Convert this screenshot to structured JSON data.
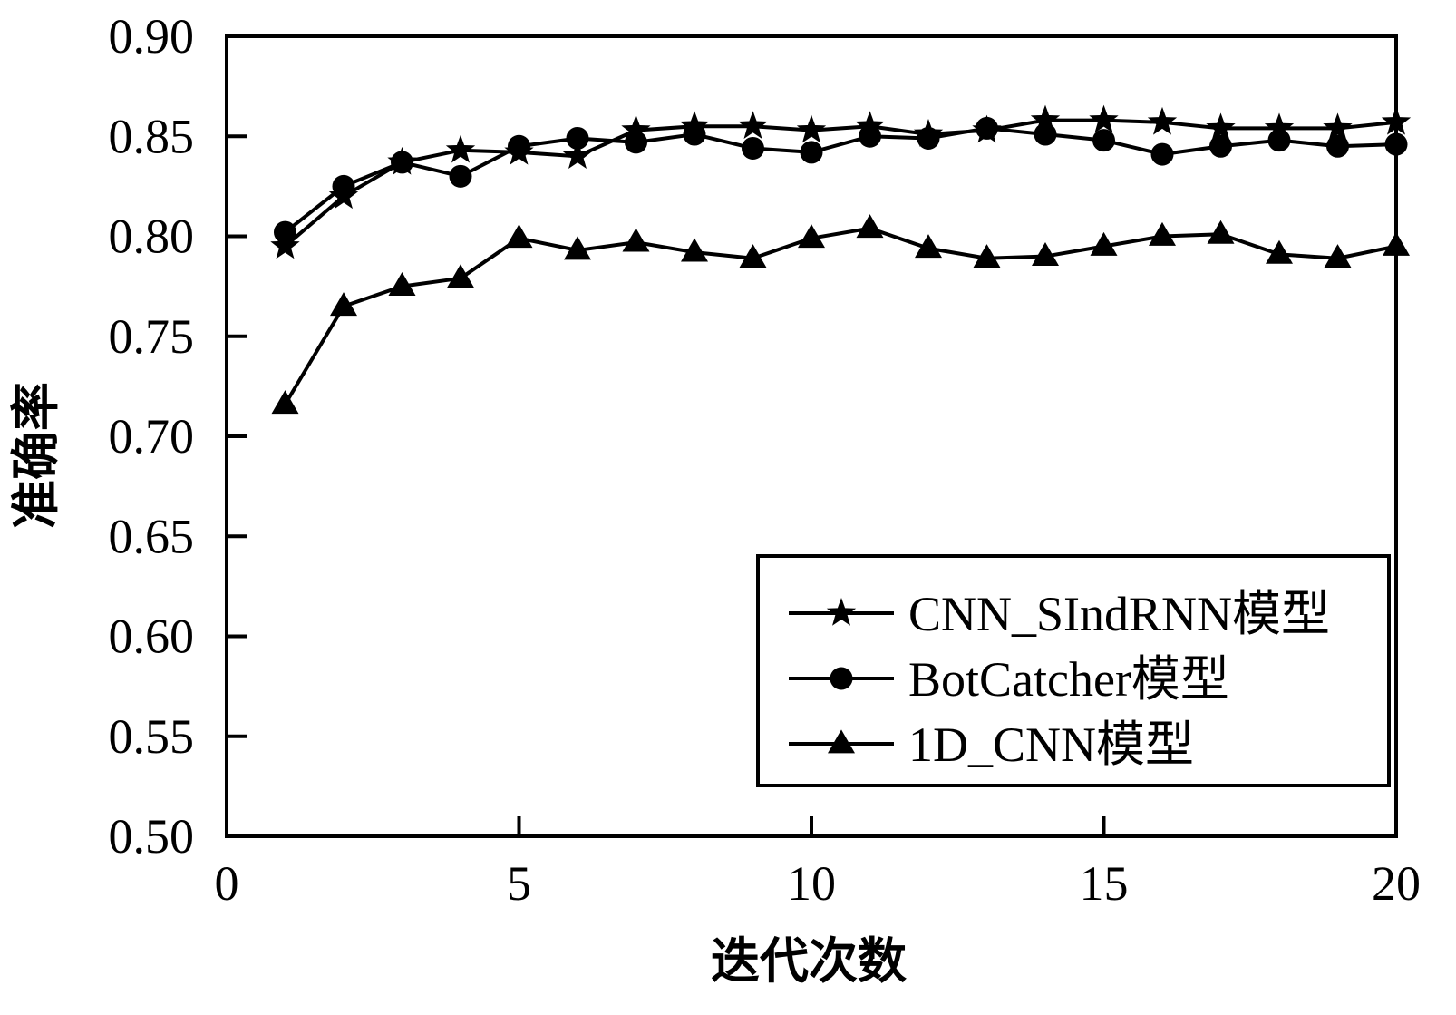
{
  "chart_data": {
    "type": "line",
    "xlabel": "迭代次数",
    "ylabel": "准确率",
    "xlim": [
      0,
      20
    ],
    "ylim": [
      0.5,
      0.9
    ],
    "x_ticks": [
      "0",
      "5",
      "10",
      "15",
      "20"
    ],
    "y_ticks": [
      "0.50",
      "0.55",
      "0.60",
      "0.65",
      "0.70",
      "0.75",
      "0.80",
      "0.85",
      "0.90"
    ],
    "legend_position": "lower-right",
    "grid": false,
    "x": [
      1,
      2,
      3,
      4,
      5,
      6,
      7,
      8,
      9,
      10,
      11,
      12,
      13,
      14,
      15,
      16,
      17,
      18,
      19,
      20
    ],
    "series": [
      {
        "name": "CNN_SIndRNN模型",
        "marker": "star",
        "values": [
          0.795,
          0.82,
          0.837,
          0.843,
          0.842,
          0.84,
          0.853,
          0.855,
          0.855,
          0.853,
          0.855,
          0.851,
          0.853,
          0.858,
          0.858,
          0.857,
          0.854,
          0.854,
          0.854,
          0.857
        ]
      },
      {
        "name": "BotCatcher模型",
        "marker": "circle",
        "values": [
          0.802,
          0.825,
          0.837,
          0.83,
          0.845,
          0.849,
          0.847,
          0.851,
          0.844,
          0.842,
          0.85,
          0.849,
          0.854,
          0.851,
          0.848,
          0.841,
          0.845,
          0.848,
          0.845,
          0.846
        ]
      },
      {
        "name": "1D_CNN模型",
        "marker": "triangle",
        "values": [
          0.716,
          0.765,
          0.775,
          0.779,
          0.799,
          0.793,
          0.797,
          0.792,
          0.789,
          0.799,
          0.804,
          0.794,
          0.789,
          0.79,
          0.795,
          0.8,
          0.801,
          0.791,
          0.789,
          0.795
        ]
      }
    ]
  }
}
